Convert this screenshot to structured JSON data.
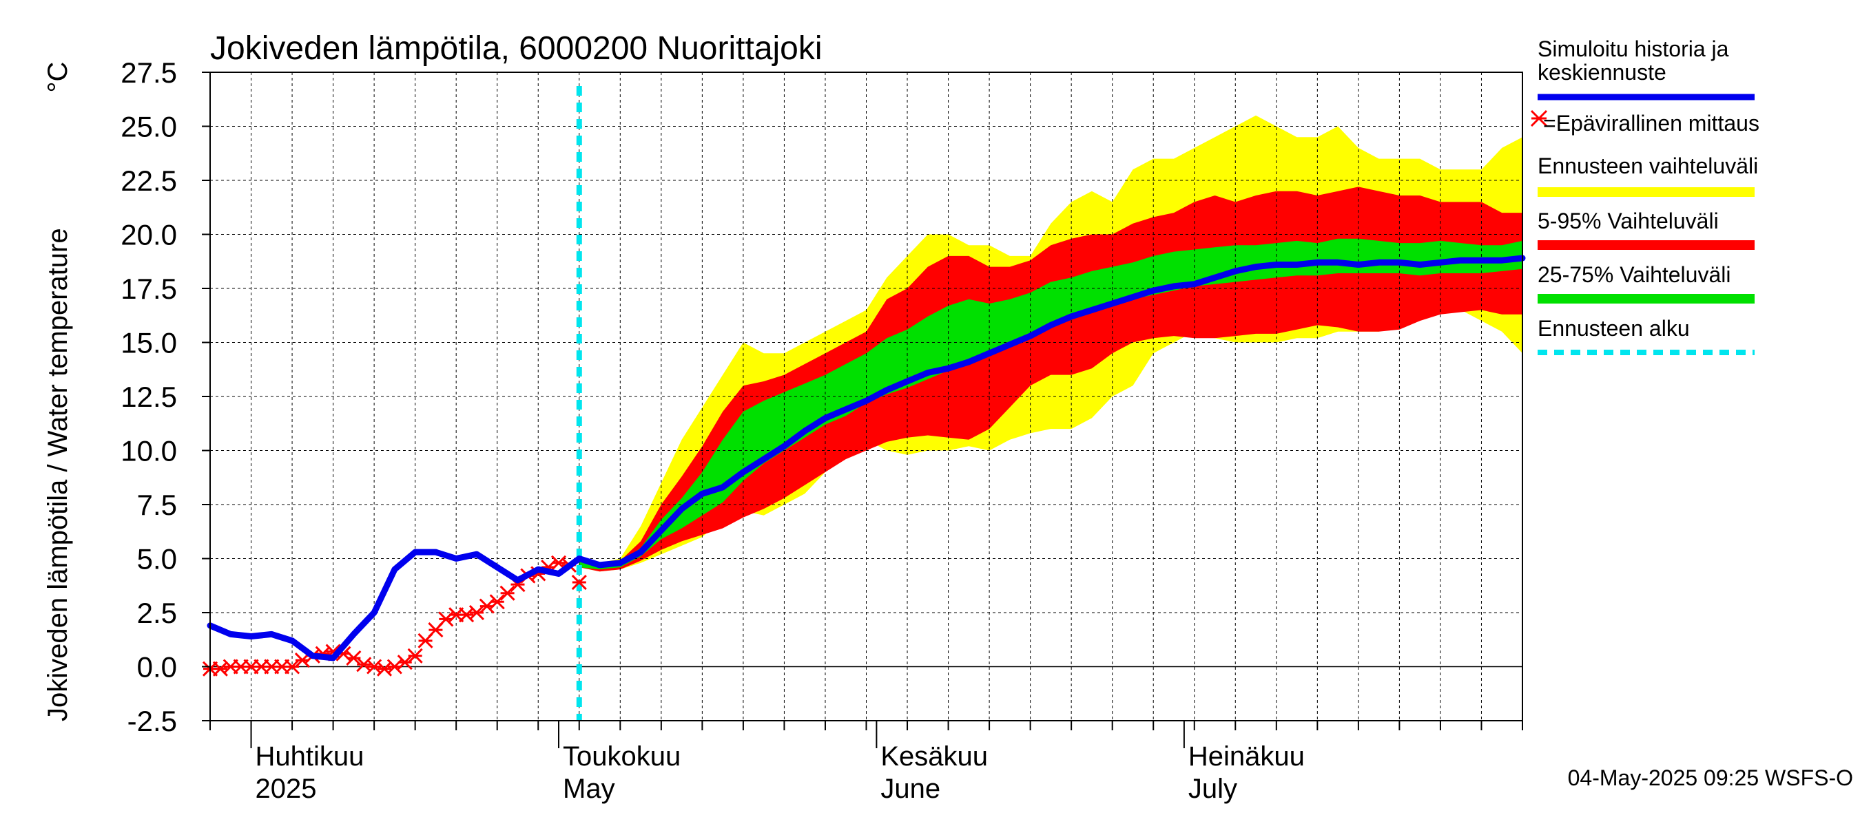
{
  "chart_data": {
    "type": "area",
    "title": "Jokiveden lämpötila, 6000200 Nuorittajoki",
    "ylabel": "Jokiveden lämpötila / Water temperature",
    "yunit": "°C",
    "ylim": [
      -2.5,
      27.5
    ],
    "yticks": [
      "27.5",
      "25.0",
      "22.5",
      "20.0",
      "17.5",
      "15.0",
      "12.5",
      "10.0",
      "7.5",
      "5.0",
      "2.5",
      "0.0",
      "-2.5"
    ],
    "xlim": [
      "2025-03-28",
      "2025-08-03"
    ],
    "grid": true,
    "month_labels": [
      {
        "date": "2025-04-01",
        "fi": "Huhtikuu",
        "en": "2025"
      },
      {
        "date": "2025-05-01",
        "fi": "Toukokuu",
        "en": "May"
      },
      {
        "date": "2025-06-01",
        "fi": "Kesäkuu",
        "en": "June"
      },
      {
        "date": "2025-07-01",
        "fi": "Heinäkuu",
        "en": "July"
      }
    ],
    "forecast_start": "2025-05-03",
    "legend": {
      "position": "right",
      "entries": [
        {
          "key": "sim",
          "label_lines": [
            "Simuloitu historia ja",
            "keskiennuste"
          ],
          "color": "#0000ee"
        },
        {
          "key": "obs",
          "label_lines": [
            "=Epävirallinen mittaus"
          ],
          "color": "#ff0000"
        },
        {
          "key": "range",
          "label_lines": [
            "Ennusteen vaihteluväli"
          ],
          "color": "#ffff00"
        },
        {
          "key": "p5_95",
          "label_lines": [
            "5-95% Vaihteluväli"
          ],
          "color": "#ff0000"
        },
        {
          "key": "p25_75",
          "label_lines": [
            "25-75% Vaihteluväli"
          ],
          "color": "#00e000"
        },
        {
          "key": "fstart",
          "label_lines": [
            "Ennusteen alku"
          ],
          "color": "#00e5ee"
        }
      ]
    },
    "footer": "04-May-2025 09:25 WSFS-O",
    "bands": {
      "x": [
        "2025-05-03",
        "2025-05-05",
        "2025-05-07",
        "2025-05-09",
        "2025-05-11",
        "2025-05-13",
        "2025-05-15",
        "2025-05-17",
        "2025-05-19",
        "2025-05-21",
        "2025-05-23",
        "2025-05-25",
        "2025-05-27",
        "2025-05-29",
        "2025-05-31",
        "2025-06-02",
        "2025-06-04",
        "2025-06-06",
        "2025-06-08",
        "2025-06-10",
        "2025-06-12",
        "2025-06-14",
        "2025-06-16",
        "2025-06-18",
        "2025-06-20",
        "2025-06-22",
        "2025-06-24",
        "2025-06-26",
        "2025-06-28",
        "2025-06-30",
        "2025-07-02",
        "2025-07-04",
        "2025-07-06",
        "2025-07-08",
        "2025-07-10",
        "2025-07-12",
        "2025-07-14",
        "2025-07-16",
        "2025-07-18",
        "2025-07-20",
        "2025-07-22",
        "2025-07-24",
        "2025-07-26",
        "2025-07-28",
        "2025-07-30",
        "2025-08-01",
        "2025-08-03"
      ],
      "max": [
        5.0,
        4.8,
        5.0,
        6.5,
        8.5,
        10.5,
        12.0,
        13.5,
        15.0,
        14.5,
        14.5,
        15.0,
        15.5,
        16.0,
        16.5,
        18.0,
        19.0,
        20.0,
        20.0,
        19.5,
        19.5,
        19.0,
        19.0,
        20.5,
        21.5,
        22.0,
        21.5,
        23.0,
        23.5,
        23.5,
        24.0,
        24.5,
        25.0,
        25.5,
        25.0,
        24.5,
        24.5,
        25.0,
        24.0,
        23.5,
        23.5,
        23.5,
        23.0,
        23.0,
        23.0,
        24.0,
        24.5
      ],
      "p95": [
        5.0,
        4.8,
        4.9,
        5.8,
        7.5,
        8.8,
        10.2,
        11.8,
        13.0,
        13.2,
        13.5,
        14.0,
        14.5,
        15.0,
        15.5,
        17.0,
        17.5,
        18.5,
        19.0,
        19.0,
        18.5,
        18.5,
        18.8,
        19.5,
        19.8,
        20.0,
        20.0,
        20.5,
        20.8,
        21.0,
        21.5,
        21.8,
        21.5,
        21.8,
        22.0,
        22.0,
        21.8,
        22.0,
        22.2,
        22.0,
        21.8,
        21.8,
        21.5,
        21.5,
        21.5,
        21.0,
        21.0
      ],
      "p75": [
        4.9,
        4.7,
        4.8,
        5.5,
        6.8,
        7.8,
        9.0,
        10.5,
        11.8,
        12.3,
        12.7,
        13.1,
        13.5,
        14.0,
        14.5,
        15.2,
        15.6,
        16.2,
        16.7,
        17.0,
        16.8,
        17.0,
        17.3,
        17.8,
        18.0,
        18.3,
        18.5,
        18.7,
        19.0,
        19.2,
        19.3,
        19.4,
        19.5,
        19.5,
        19.6,
        19.7,
        19.6,
        19.8,
        19.8,
        19.7,
        19.6,
        19.6,
        19.7,
        19.6,
        19.5,
        19.5,
        19.7
      ],
      "p25": [
        4.6,
        4.5,
        4.6,
        5.1,
        5.9,
        6.4,
        7.0,
        7.6,
        8.6,
        9.4,
        10.0,
        10.6,
        11.2,
        11.6,
        12.2,
        12.6,
        12.9,
        13.3,
        13.7,
        14.1,
        14.5,
        15.0,
        15.4,
        15.8,
        16.1,
        16.4,
        16.7,
        17.0,
        17.2,
        17.4,
        17.6,
        17.7,
        17.8,
        17.9,
        18.0,
        18.1,
        18.1,
        18.2,
        18.2,
        18.2,
        18.2,
        18.1,
        18.2,
        18.2,
        18.2,
        18.3,
        18.4
      ],
      "p5": [
        4.6,
        4.4,
        4.5,
        4.9,
        5.4,
        5.8,
        6.1,
        6.4,
        6.9,
        7.3,
        7.8,
        8.4,
        9.0,
        9.6,
        10.0,
        10.4,
        10.6,
        10.7,
        10.6,
        10.5,
        11.0,
        12.0,
        13.0,
        13.5,
        13.5,
        13.8,
        14.5,
        15.0,
        15.2,
        15.3,
        15.2,
        15.2,
        15.3,
        15.4,
        15.4,
        15.6,
        15.8,
        15.7,
        15.5,
        15.5,
        15.6,
        16.0,
        16.3,
        16.4,
        16.5,
        16.3,
        16.3
      ],
      "min": [
        4.6,
        4.4,
        4.5,
        4.8,
        5.2,
        5.6,
        6.0,
        6.8,
        7.2,
        7.0,
        7.5,
        8.0,
        9.0,
        10.0,
        10.5,
        10.0,
        9.8,
        10.0,
        10.0,
        10.2,
        10.0,
        10.5,
        10.8,
        11.0,
        11.0,
        11.5,
        12.5,
        13.0,
        14.5,
        15.0,
        15.5,
        15.2,
        15.0,
        15.0,
        15.0,
        15.2,
        15.2,
        15.5,
        15.5,
        15.5,
        16.0,
        16.5,
        16.5,
        16.5,
        16.0,
        15.5,
        14.5
      ]
    },
    "series": [
      {
        "key": "sim",
        "x": [
          "2025-03-28",
          "2025-03-30",
          "2025-04-01",
          "2025-04-03",
          "2025-04-05",
          "2025-04-07",
          "2025-04-09",
          "2025-04-11",
          "2025-04-13",
          "2025-04-15",
          "2025-04-17",
          "2025-04-19",
          "2025-04-21",
          "2025-04-23",
          "2025-04-25",
          "2025-04-27",
          "2025-04-29",
          "2025-05-01",
          "2025-05-03",
          "2025-05-05",
          "2025-05-07",
          "2025-05-09",
          "2025-05-11",
          "2025-05-13",
          "2025-05-15",
          "2025-05-17",
          "2025-05-19",
          "2025-05-21",
          "2025-05-23",
          "2025-05-25",
          "2025-05-27",
          "2025-05-29",
          "2025-05-31",
          "2025-06-02",
          "2025-06-04",
          "2025-06-06",
          "2025-06-08",
          "2025-06-10",
          "2025-06-12",
          "2025-06-14",
          "2025-06-16",
          "2025-06-18",
          "2025-06-20",
          "2025-06-22",
          "2025-06-24",
          "2025-06-26",
          "2025-06-28",
          "2025-06-30",
          "2025-07-02",
          "2025-07-04",
          "2025-07-06",
          "2025-07-08",
          "2025-07-10",
          "2025-07-12",
          "2025-07-14",
          "2025-07-16",
          "2025-07-18",
          "2025-07-20",
          "2025-07-22",
          "2025-07-24",
          "2025-07-26",
          "2025-07-28",
          "2025-07-30",
          "2025-08-01",
          "2025-08-03"
        ],
        "y": [
          1.9,
          1.5,
          1.4,
          1.5,
          1.2,
          0.5,
          0.4,
          1.5,
          2.5,
          4.5,
          5.3,
          5.3,
          5.0,
          5.2,
          4.6,
          4.0,
          4.5,
          4.3,
          5.0,
          4.7,
          4.8,
          5.3,
          6.3,
          7.3,
          8.0,
          8.3,
          9.0,
          9.6,
          10.2,
          10.9,
          11.5,
          11.9,
          12.3,
          12.8,
          13.2,
          13.6,
          13.8,
          14.1,
          14.5,
          14.9,
          15.3,
          15.8,
          16.2,
          16.5,
          16.8,
          17.1,
          17.4,
          17.6,
          17.7,
          18.0,
          18.3,
          18.5,
          18.6,
          18.6,
          18.7,
          18.7,
          18.6,
          18.7,
          18.7,
          18.6,
          18.7,
          18.8,
          18.8,
          18.8,
          18.9
        ]
      },
      {
        "key": "obs",
        "x": [
          "2025-03-28",
          "2025-03-29",
          "2025-03-30",
          "2025-03-31",
          "2025-04-01",
          "2025-04-02",
          "2025-04-03",
          "2025-04-04",
          "2025-04-05",
          "2025-04-06",
          "2025-04-07",
          "2025-04-08",
          "2025-04-09",
          "2025-04-10",
          "2025-04-11",
          "2025-04-12",
          "2025-04-13",
          "2025-04-14",
          "2025-04-15",
          "2025-04-16",
          "2025-04-17",
          "2025-04-18",
          "2025-04-19",
          "2025-04-20",
          "2025-04-21",
          "2025-04-22",
          "2025-04-23",
          "2025-04-24",
          "2025-04-25",
          "2025-04-26",
          "2025-04-27",
          "2025-04-28",
          "2025-04-29",
          "2025-04-30",
          "2025-05-01",
          "2025-05-02",
          "2025-05-03"
        ],
        "y": [
          -0.1,
          -0.1,
          0.0,
          0.0,
          0.0,
          0.0,
          0.0,
          0.0,
          0.0,
          0.3,
          0.5,
          0.6,
          0.7,
          0.6,
          0.4,
          0.1,
          0.0,
          -0.1,
          0.0,
          0.2,
          0.5,
          1.2,
          1.7,
          2.2,
          2.4,
          2.4,
          2.5,
          2.8,
          3.0,
          3.4,
          3.8,
          4.2,
          4.3,
          4.6,
          4.8,
          4.7,
          3.9
        ]
      }
    ]
  }
}
